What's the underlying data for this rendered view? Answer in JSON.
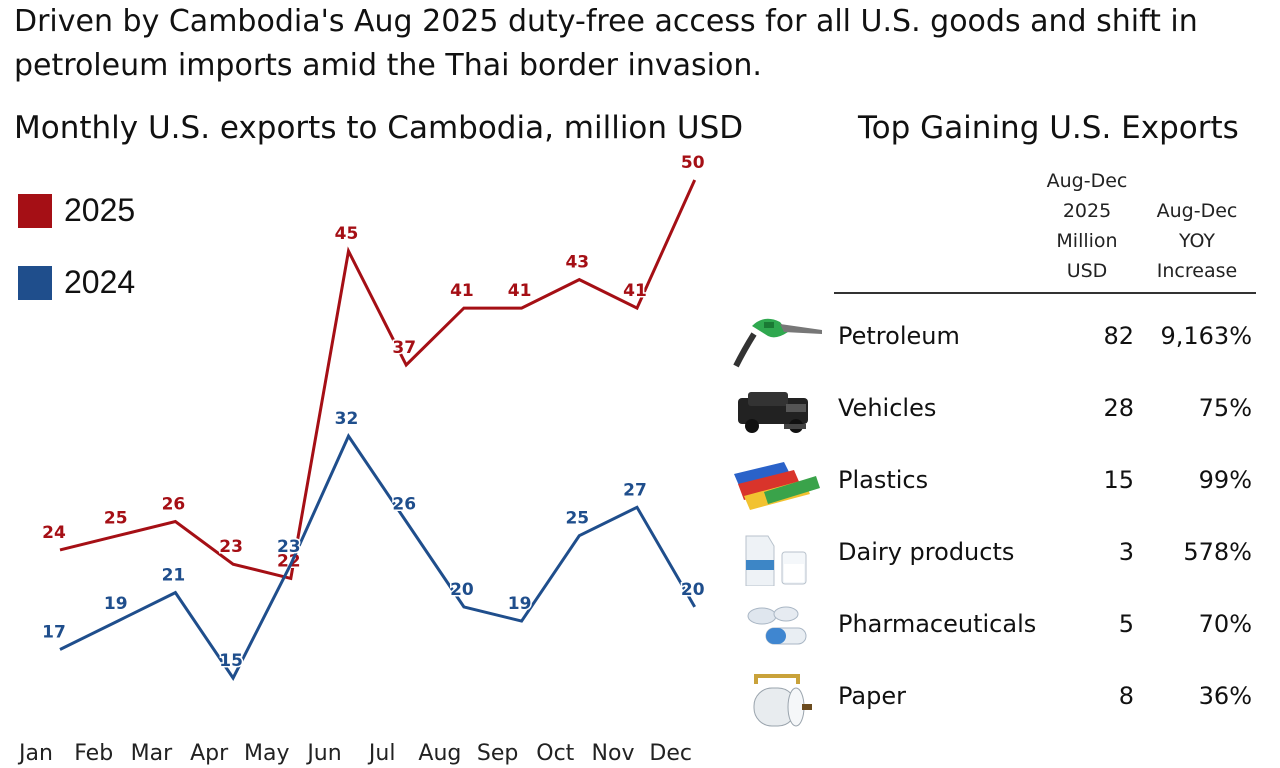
{
  "headline": "Driven by Cambodia's Aug 2025 duty-free access for all U.S. goods and shift in petroleum imports amid the Thai border invasion.",
  "chart_data": {
    "type": "line",
    "title": "Monthly U.S. exports to Cambodia, million USD",
    "categories": [
      "Jan",
      "Feb",
      "Mar",
      "Apr",
      "May",
      "Jun",
      "Jul",
      "Aug",
      "Sep",
      "Oct",
      "Nov",
      "Dec"
    ],
    "series": [
      {
        "name": "2025",
        "color": "#a50f15",
        "values": [
          24,
          25,
          26,
          23,
          22,
          45,
          37,
          41,
          41,
          43,
          41,
          50
        ]
      },
      {
        "name": "2024",
        "color": "#1f4e8c",
        "values": [
          17,
          19,
          21,
          15,
          23,
          32,
          26,
          20,
          19,
          25,
          27,
          20
        ]
      }
    ],
    "xlabel": "",
    "ylabel": "",
    "grid": false,
    "legend": "top-left",
    "data_labels": true
  },
  "table": {
    "title": "Top Gaining U.S. Exports",
    "col_usd_header": [
      "Aug-Dec",
      "2025",
      "Million",
      "USD"
    ],
    "col_yoy_header": [
      "Aug-Dec",
      "YOY",
      "Increase"
    ],
    "rows": [
      {
        "name": "Petroleum",
        "usd": "82",
        "yoy": "9,163%",
        "icon": "fuel-nozzle-icon"
      },
      {
        "name": "Vehicles",
        "usd": "28",
        "yoy": "75%",
        "icon": "vehicle-icon"
      },
      {
        "name": "Plastics",
        "usd": "15",
        "yoy": "99%",
        "icon": "plastic-rolls-icon"
      },
      {
        "name": "Dairy products",
        "usd": "3",
        "yoy": "578%",
        "icon": "milk-carton-icon"
      },
      {
        "name": "Pharmaceuticals",
        "usd": "5",
        "yoy": "70%",
        "icon": "pills-icon"
      },
      {
        "name": "Paper",
        "usd": "8",
        "yoy": "36%",
        "icon": "paper-roll-icon"
      }
    ]
  }
}
